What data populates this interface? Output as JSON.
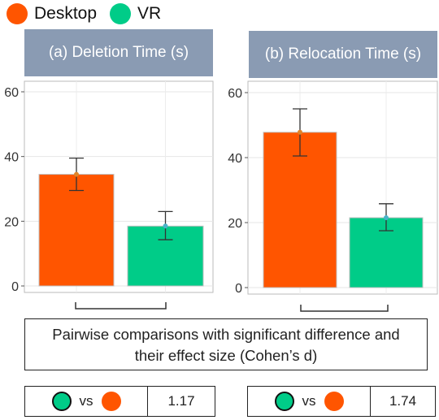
{
  "legend": [
    {
      "label": "Desktop",
      "color": "#ff5500"
    },
    {
      "label": "VR",
      "color": "#00cc88"
    }
  ],
  "chart_data": [
    {
      "type": "bar",
      "title": "(a) Deletion Time (s)",
      "categories": [
        "Desktop",
        "VR"
      ],
      "values": [
        34.5,
        18.5
      ],
      "error_low": [
        29.5,
        14.3
      ],
      "error_high": [
        39.5,
        23.0
      ],
      "ylim": [
        0,
        60
      ],
      "yticks": [
        0,
        20,
        40,
        60
      ],
      "grid": true,
      "colors": [
        "#ff5500",
        "#00cc88"
      ]
    },
    {
      "type": "bar",
      "title": "(b) Relocation Time (s)",
      "categories": [
        "Desktop",
        "VR"
      ],
      "values": [
        47.8,
        21.5
      ],
      "error_low": [
        40.5,
        17.5
      ],
      "error_high": [
        55.0,
        25.8
      ],
      "ylim": [
        0,
        60
      ],
      "yticks": [
        0,
        20,
        40,
        60
      ],
      "grid": true,
      "colors": [
        "#ff5500",
        "#00cc88"
      ]
    }
  ],
  "note": {
    "line1": "Pairwise comparisons with significant difference and",
    "line2": "their effect size (Cohen’s d)"
  },
  "comparisons": [
    {
      "vs": "vs",
      "value": "1.17"
    },
    {
      "vs": "vs",
      "value": "1.74"
    }
  ]
}
